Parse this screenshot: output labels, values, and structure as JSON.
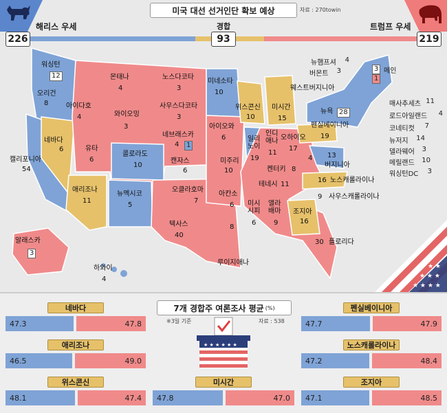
{
  "header": {
    "title": "미국 대선 선거인단 확보 예상",
    "source": "자료 : 270towin"
  },
  "harris": {
    "label": "해리스 우세",
    "count": "226",
    "color": "#5b86cc"
  },
  "trump": {
    "label": "트럼프 우세",
    "count": "219",
    "color": "#f07b7b"
  },
  "tossup": {
    "label": "경합",
    "count": "93",
    "color": "#e6c16a"
  },
  "states": {
    "wa": {
      "name": "워싱턴",
      "ev": "12"
    },
    "or": {
      "name": "오리건",
      "ev": "8"
    },
    "ca": {
      "name": "캘리포니아",
      "ev": "54"
    },
    "nv": {
      "name": "네바다",
      "ev": "6"
    },
    "id": {
      "name": "아이다호",
      "ev": "4"
    },
    "mt": {
      "name": "몬태나",
      "ev": "4"
    },
    "wy": {
      "name": "와이오밍",
      "ev": "3"
    },
    "ut": {
      "name": "유타",
      "ev": "6"
    },
    "az": {
      "name": "애리조나",
      "ev": "11"
    },
    "co": {
      "name": "콜로라도",
      "ev": "10"
    },
    "nm": {
      "name": "뉴멕시코",
      "ev": "5"
    },
    "nd": {
      "name": "노스다코타",
      "ev": "3"
    },
    "sd": {
      "name": "사우스다코타",
      "ev": "3"
    },
    "ne": {
      "name": "네브래스카",
      "ev": "4",
      "ev2": "1"
    },
    "ks": {
      "name": "캔자스",
      "ev": "6"
    },
    "ok": {
      "name": "오클라호마",
      "ev": "7"
    },
    "tx": {
      "name": "텍사스",
      "ev": "40"
    },
    "mn": {
      "name": "미네소타",
      "ev": "10"
    },
    "ia": {
      "name": "아이오와",
      "ev": "6"
    },
    "mo": {
      "name": "미주리",
      "ev": "10"
    },
    "ar": {
      "name": "아칸소",
      "ev": "6"
    },
    "la": {
      "name": "루이지애나",
      "ev": "8"
    },
    "wi": {
      "name": "위스콘신",
      "ev": "10"
    },
    "il": {
      "name": "일리\n노이",
      "ev": "19"
    },
    "mi": {
      "name": "미시간",
      "ev": "15"
    },
    "in": {
      "name": "인디\n애나",
      "ev": "11"
    },
    "oh": {
      "name": "오하이오",
      "ev": "17"
    },
    "ky": {
      "name": "켄터키",
      "ev": "8"
    },
    "tn": {
      "name": "테네시",
      "ev": "11"
    },
    "ms": {
      "name": "미시\n시피",
      "ev": "6"
    },
    "al": {
      "name": "앨라\n배마",
      "ev": "9"
    },
    "ga": {
      "name": "조지아",
      "ev": "16"
    },
    "fl": {
      "name": "플로리다",
      "ev": "30"
    },
    "sc": {
      "name": "사우스캐롤라이나",
      "ev": "9"
    },
    "nc": {
      "name": "노스캐롤라이나",
      "ev": "16"
    },
    "va": {
      "name": "버지니아",
      "ev": "13"
    },
    "wv": {
      "name": "웨스트버지니아",
      "ev": "4"
    },
    "pa": {
      "name": "펜실베이니아",
      "ev": "19"
    },
    "ny": {
      "name": "뉴욕",
      "ev": "28"
    },
    "me": {
      "name": "메인",
      "ev": "3",
      "ev2": "1"
    },
    "ak": {
      "name": "알래스카",
      "ev": "3"
    },
    "hi": {
      "name": "하와이",
      "ev": "4"
    }
  },
  "northeast": [
    {
      "name": "뉴햄프셔",
      "ev": "4"
    },
    {
      "name": "버몬트",
      "ev": "3"
    },
    {
      "name": "매사추세츠",
      "ev": "11"
    },
    {
      "name": "로드아일랜드",
      "ev": "4"
    },
    {
      "name": "코네티컷",
      "ev": "7"
    },
    {
      "name": "뉴저지",
      "ev": "14"
    },
    {
      "name": "델라웨어",
      "ev": "3"
    },
    {
      "name": "메릴랜드",
      "ev": "10"
    },
    {
      "name": "워싱턴DC",
      "ev": "3"
    }
  ],
  "polls": {
    "title": "7개 경합주 여론조사 평균",
    "unit": "(%)",
    "date_note": "※3일 기준",
    "source": "자료 : 538",
    "items": [
      {
        "state": "네바다",
        "harris": "47.3",
        "trump": "47.8",
        "h": 47.3,
        "t": 47.8
      },
      {
        "state": "애리조나",
        "harris": "46.5",
        "trump": "49.0",
        "h": 46.5,
        "t": 49.0
      },
      {
        "state": "위스콘신",
        "harris": "48.1",
        "trump": "47.4",
        "h": 48.1,
        "t": 47.4
      },
      {
        "state": "미시간",
        "harris": "47.8",
        "trump": "47.0",
        "h": 47.8,
        "t": 47.0
      },
      {
        "state": "펜실베이니아",
        "harris": "47.7",
        "trump": "47.9",
        "h": 47.7,
        "t": 47.9
      },
      {
        "state": "노스캐롤라이나",
        "harris": "47.2",
        "trump": "48.4",
        "h": 47.2,
        "t": 48.4
      },
      {
        "state": "조지아",
        "harris": "47.1",
        "trump": "48.5",
        "h": 47.1,
        "t": 48.5
      }
    ]
  },
  "icons": [
    "donkey-icon",
    "elephant-icon",
    "ballot-box-icon",
    "checkmark-icon",
    "stars-stripes-icon"
  ]
}
